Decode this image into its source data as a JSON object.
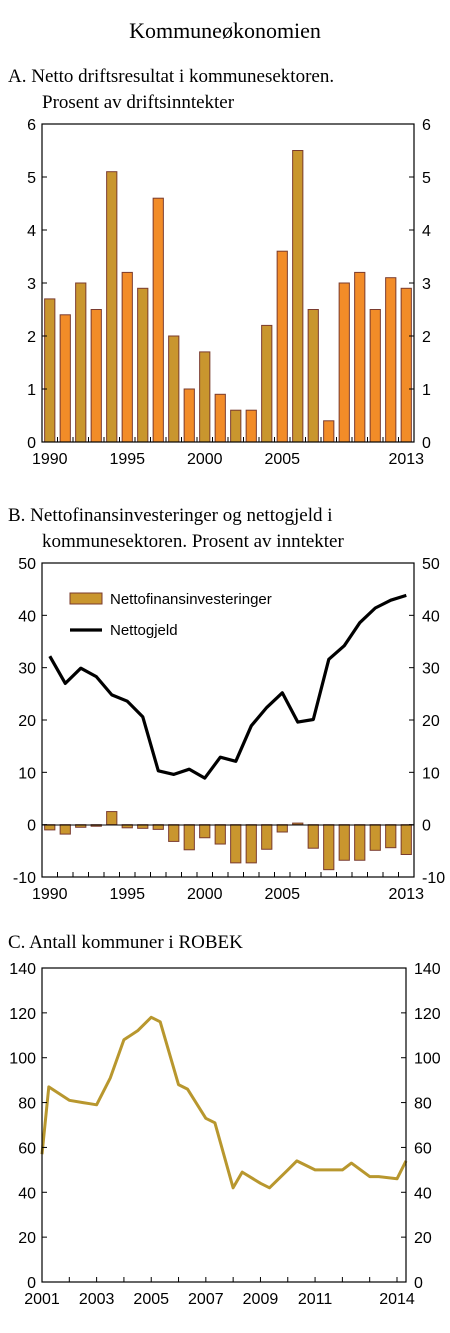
{
  "figure_title": "Kommuneøkonomien",
  "colors": {
    "bar_orange": "#f28c28",
    "bar_gold": "#c9962e",
    "bar_edge": "#7a3b2e",
    "line_black": "#000000",
    "line_gold": "#b8972e",
    "axis": "#000000"
  },
  "chart_data": [
    {
      "type": "bar",
      "title_line1": "A.  Netto driftsresultat i kommunesektoren.",
      "title_line2": "Prosent av driftsinntekter",
      "categories": [
        "1990",
        "1991",
        "1992",
        "1993",
        "1994",
        "1995",
        "1996",
        "1997",
        "1998",
        "1999",
        "2000",
        "2001",
        "2002",
        "2003",
        "2004",
        "2005",
        "2006",
        "2007",
        "2008",
        "2009",
        "2010",
        "2011",
        "2012",
        "2013"
      ],
      "values": [
        2.7,
        2.4,
        3.0,
        2.5,
        5.1,
        3.2,
        2.9,
        4.6,
        2.0,
        1.0,
        1.7,
        0.9,
        0.6,
        0.6,
        2.2,
        3.6,
        5.5,
        2.5,
        0.4,
        3.0,
        3.2,
        2.5,
        3.1,
        2.9
      ],
      "bar_style": [
        "gold",
        "orange",
        "gold",
        "orange",
        "gold",
        "orange",
        "gold",
        "orange",
        "gold",
        "orange",
        "gold",
        "orange",
        "gold",
        "orange",
        "gold",
        "orange",
        "gold",
        "gold",
        "orange",
        "orange",
        "orange",
        "orange",
        "orange",
        "orange"
      ],
      "ylim": [
        0,
        6
      ],
      "yticks": [
        0,
        1,
        2,
        3,
        4,
        5,
        6
      ],
      "xtick_labels": [
        {
          "label": "1990",
          "year": 1990
        },
        {
          "label": "1995",
          "year": 1995
        },
        {
          "label": "2000",
          "year": 2000
        },
        {
          "label": "2005",
          "year": 2005
        },
        {
          "label": "2013",
          "year": 2013
        }
      ]
    },
    {
      "type": "bar+line",
      "title_line1": "B.  Nettofinansinvesteringer og nettogjeld i",
      "title_line2": "kommunesektoren. Prosent av inntekter",
      "categories": [
        "1990",
        "1991",
        "1992",
        "1993",
        "1994",
        "1995",
        "1996",
        "1997",
        "1998",
        "1999",
        "2000",
        "2001",
        "2002",
        "2003",
        "2004",
        "2005",
        "2006",
        "2007",
        "2008",
        "2009",
        "2010",
        "2011",
        "2012",
        "2013"
      ],
      "series": [
        {
          "name": "Nettofinansinvesteringer",
          "kind": "bar",
          "values": [
            -1.0,
            -1.8,
            -0.5,
            -0.3,
            2.5,
            -0.6,
            -0.7,
            -0.9,
            -3.2,
            -4.8,
            -2.5,
            -3.7,
            -7.3,
            -7.3,
            -4.7,
            -1.4,
            0.3,
            -4.5,
            -8.6,
            -6.8,
            -6.8,
            -4.9,
            -4.4,
            -5.7
          ]
        },
        {
          "name": "Nettogjeld",
          "kind": "line",
          "values": [
            32.2,
            27.0,
            29.9,
            28.3,
            24.8,
            23.6,
            20.6,
            10.3,
            9.6,
            10.6,
            8.9,
            12.9,
            12.1,
            18.9,
            22.4,
            25.2,
            19.6,
            20.1,
            31.6,
            34.2,
            38.6,
            41.4,
            42.9,
            43.8
          ]
        }
      ],
      "ylim": [
        -10,
        50
      ],
      "yticks": [
        -10,
        0,
        10,
        20,
        30,
        40,
        50
      ],
      "xtick_labels": [
        {
          "label": "1990",
          "year": 1990
        },
        {
          "label": "1995",
          "year": 1995
        },
        {
          "label": "2000",
          "year": 2000
        },
        {
          "label": "2005",
          "year": 2005
        },
        {
          "label": "2013",
          "year": 2013
        }
      ],
      "legend_placement": "top-left"
    },
    {
      "type": "line",
      "title_line1": "C.  Antall kommuner i ROBEK",
      "x": [
        2001.0,
        2001.25,
        2001.5,
        2002.0,
        2002.5,
        2002.75,
        2003.0,
        2003.5,
        2004.0,
        2004.5,
        2005.0,
        2005.33,
        2006.0,
        2006.33,
        2007.0,
        2007.33,
        2008.0,
        2008.33,
        2009.0,
        2009.33,
        2010.0,
        2010.33,
        2011.0,
        2011.33,
        2012.0,
        2012.33,
        2013.0,
        2013.33,
        2014.0,
        2014.33
      ],
      "values": [
        57,
        87,
        85,
        81,
        80,
        79.5,
        79,
        91,
        108,
        112,
        118,
        116,
        88,
        86,
        73,
        71,
        42,
        49,
        44,
        42,
        50,
        54,
        50,
        50,
        50,
        53,
        47,
        47,
        46,
        54
      ],
      "ylim": [
        0,
        140
      ],
      "yticks": [
        0,
        20,
        40,
        60,
        80,
        100,
        120,
        140
      ],
      "xlim": [
        2001.0,
        2014.33
      ],
      "xtick_labels": [
        {
          "label": "2001",
          "year": 2001
        },
        {
          "label": "2003",
          "year": 2003
        },
        {
          "label": "2005",
          "year": 2005
        },
        {
          "label": "2007",
          "year": 2007
        },
        {
          "label": "2009",
          "year": 2009
        },
        {
          "label": "2011",
          "year": 2011
        },
        {
          "label": "2014",
          "year": 2014
        }
      ]
    }
  ]
}
